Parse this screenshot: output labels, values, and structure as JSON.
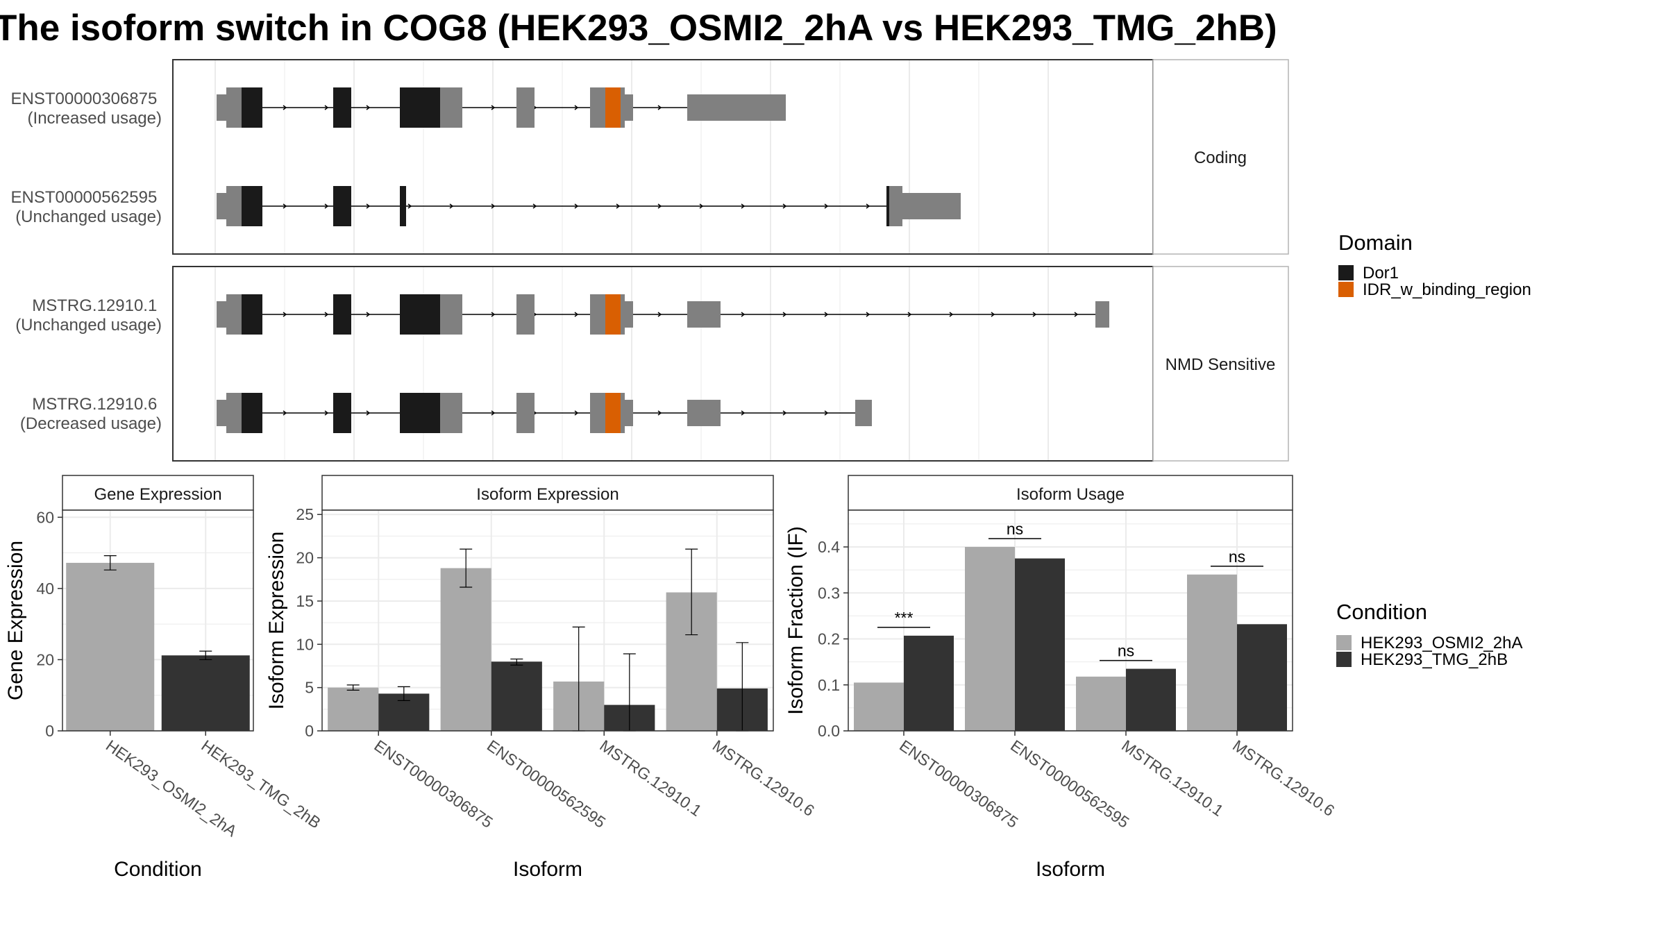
{
  "title": "The isoform switch in COG8 (HEK293_OSMI2_2hA vs HEK293_TMG_2hB)",
  "colors": {
    "domain_dor1": "#1a1a1a",
    "domain_idr": "#d95f02",
    "exon": "#808080",
    "condition_a": "#a9a9a9",
    "condition_b": "#333333",
    "grid": "#ebebeb",
    "frame": "#333333",
    "strip_fill": "#ffffff"
  },
  "structure": {
    "panels": [
      {
        "label": "Coding",
        "transcripts": [
          {
            "id": "ENST00000306875",
            "usage": "(Increased usage)"
          },
          {
            "id": "ENST00000562595",
            "usage": "(Unchanged usage)"
          }
        ]
      },
      {
        "label": "NMD Sensitive",
        "transcripts": [
          {
            "id": "MSTRG.12910.1",
            "usage": "(Unchanged usage)"
          },
          {
            "id": "MSTRG.12910.6",
            "usage": "(Decreased usage)"
          }
        ]
      }
    ]
  },
  "legend_domain": {
    "title": "Domain",
    "items": [
      {
        "label": "Dor1",
        "color": "#1a1a1a"
      },
      {
        "label": "IDR_w_binding_region",
        "color": "#d95f02"
      }
    ]
  },
  "legend_condition": {
    "title": "Condition",
    "items": [
      {
        "label": "HEK293_OSMI2_2hA",
        "color": "#a9a9a9"
      },
      {
        "label": "HEK293_TMG_2hB",
        "color": "#333333"
      }
    ]
  },
  "chart_data": [
    {
      "type": "bar",
      "strip": "Gene Expression",
      "xlabel": "Condition",
      "ylabel": "Gene Expression",
      "ylim": [
        0,
        62
      ],
      "yticks": [
        0,
        20,
        40,
        60
      ],
      "categories": [
        "HEK293_OSMI2_2hA",
        "HEK293_TMG_2hB"
      ],
      "values": [
        47.2,
        21.2
      ],
      "errors": [
        [
          45.2,
          49.2
        ],
        [
          20.0,
          22.4
        ]
      ]
    },
    {
      "type": "bar",
      "strip": "Isoform Expression",
      "xlabel": "Isoform",
      "ylabel": "Isoform Expression",
      "ylim": [
        0,
        25.5
      ],
      "yticks": [
        0,
        5,
        10,
        15,
        20,
        25
      ],
      "categories": [
        "ENST00000306875",
        "ENST00000562595",
        "MSTRG.12910.1",
        "MSTRG.12910.6"
      ],
      "series": [
        {
          "name": "HEK293_OSMI2_2hA",
          "values": [
            5.0,
            18.8,
            5.7,
            16.0
          ],
          "errors": [
            [
              4.7,
              5.3
            ],
            [
              16.6,
              21.0
            ],
            [
              0,
              12.0
            ],
            [
              11.1,
              21.0
            ]
          ]
        },
        {
          "name": "HEK293_TMG_2hB",
          "values": [
            4.3,
            8.0,
            3.0,
            4.9
          ],
          "errors": [
            [
              3.5,
              5.1
            ],
            [
              7.6,
              8.3
            ],
            [
              0,
              8.9
            ],
            [
              0,
              10.2
            ]
          ]
        }
      ]
    },
    {
      "type": "bar",
      "strip": "Isoform Usage",
      "xlabel": "Isoform",
      "ylabel": "Isoform Fraction (IF)",
      "ylim": [
        0,
        0.48
      ],
      "yticks": [
        0.0,
        0.1,
        0.2,
        0.3,
        0.4
      ],
      "categories": [
        "ENST00000306875",
        "ENST00000562595",
        "MSTRG.12910.1",
        "MSTRG.12910.6"
      ],
      "series": [
        {
          "name": "HEK293_OSMI2_2hA",
          "values": [
            0.105,
            0.4,
            0.118,
            0.34
          ]
        },
        {
          "name": "HEK293_TMG_2hB",
          "values": [
            0.207,
            0.375,
            0.135,
            0.232
          ]
        }
      ],
      "significance": [
        "***",
        "ns",
        "ns",
        "ns"
      ]
    }
  ]
}
